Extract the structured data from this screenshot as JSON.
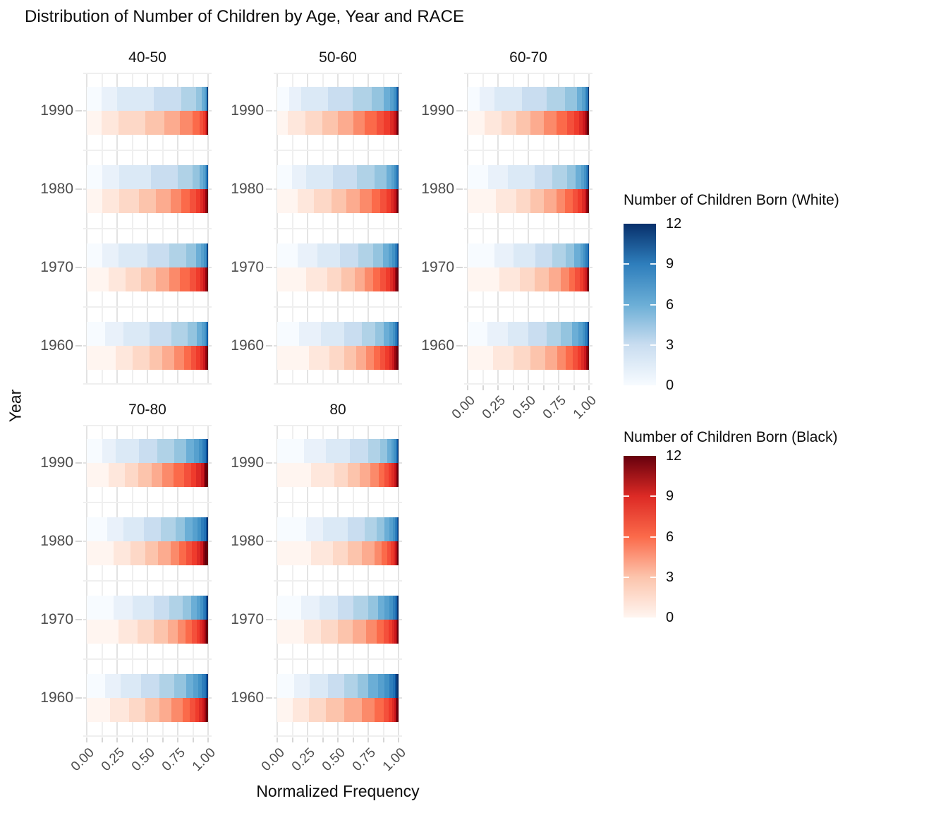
{
  "chart_data": {
    "type": "bar",
    "variant": "horizontal-stacked-normalized-gradient",
    "title": "Distribution of Number of Children by Age, Year and RACE",
    "xlabel": "Normalized Frequency",
    "ylabel": "Year",
    "x_ticks": [
      "0.00",
      "0.25",
      "0.50",
      "0.75",
      "1.00"
    ],
    "x_range": [
      0,
      1
    ],
    "years": [
      "1990",
      "1980",
      "1970",
      "1960"
    ],
    "children_scale": {
      "min": 0,
      "max": 12,
      "legend_breaks": [
        12,
        9,
        6,
        3,
        0
      ]
    },
    "grid": "on",
    "legend_position": "right",
    "palette_white": [
      "#F7FBFF",
      "#E9F1FA",
      "#DBE9F6",
      "#C9DDF0",
      "#B0D2E7",
      "#94C4DF",
      "#6BAED6",
      "#56A0CE",
      "#4292C6",
      "#2E7EBC",
      "#2171B5",
      "#0A539E",
      "#08306B"
    ],
    "palette_black": [
      "#FFF5F0",
      "#FEE7DC",
      "#FDD8C7",
      "#FCC4AC",
      "#FCAB8F",
      "#FB8A6A",
      "#FB6A4A",
      "#F4503B",
      "#EF3B2C",
      "#DD2A25",
      "#CB181D",
      "#99060F",
      "#67000D"
    ],
    "legends": [
      {
        "title": "Number of Children Born (White)",
        "ticks": [
          "12",
          "9",
          "6",
          "3",
          "0"
        ],
        "gradient": [
          "#F7FBFF",
          "#C9DDF0",
          "#6BAED6",
          "#2E7EBC",
          "#08306B"
        ]
      },
      {
        "title": "Number of Children Born (Black)",
        "ticks": [
          "12",
          "9",
          "6",
          "3",
          "0"
        ],
        "gradient": [
          "#FFF5F0",
          "#FCC4AC",
          "#FB6A4A",
          "#DD2A25",
          "#67000D"
        ]
      }
    ],
    "facets": [
      {
        "label": "40-50",
        "show_x_axis": false,
        "rows": [
          {
            "year": "1990",
            "white": [
              12,
              13,
              30,
              23,
              12,
              5,
              2,
              1,
              0.6,
              0.4,
              0.4,
              0.3,
              0.3
            ],
            "black": [
              12,
              14,
              22,
              16,
              13,
              10,
              6,
              3,
              1.5,
              1,
              0.6,
              0.5,
              0.4
            ]
          },
          {
            "year": "1980",
            "white": [
              13,
              14,
              26,
              22,
              12,
              6,
              3,
              1.5,
              1,
              0.6,
              0.4,
              0.3,
              0.2
            ],
            "black": [
              13,
              14,
              16,
              14,
              12,
              9,
              7,
              5,
              3.5,
              2.5,
              1.5,
              1.5,
              1
            ]
          },
          {
            "year": "1970",
            "white": [
              13,
              13,
              24,
              18,
              14,
              8,
              4,
              2.5,
              1.5,
              0.8,
              0.5,
              0.4,
              0.3
            ],
            "black": [
              18,
              14,
              13,
              12,
              11,
              9,
              8,
              5,
              3.5,
              2.5,
              1.5,
              1.5,
              1
            ]
          },
          {
            "year": "1960",
            "white": [
              15,
              15,
              22,
              18,
              13,
              8,
              4,
              2,
              1.2,
              0.8,
              0.5,
              0.3,
              0.2
            ],
            "black": [
              24,
              14,
              14,
              10,
              10,
              8,
              6,
              4,
              3.5,
              2.5,
              1.5,
              1.5,
              1
            ]
          }
        ]
      },
      {
        "label": "50-60",
        "show_x_axis": false,
        "rows": [
          {
            "year": "1990",
            "white": [
              10,
              10,
              22,
              20,
              16,
              10,
              5,
              3,
              1.5,
              1,
              0.6,
              0.5,
              0.4
            ],
            "black": [
              9,
              14,
              14,
              13,
              13,
              9,
              10,
              6,
              5,
              3,
              1.5,
              1.5,
              1
            ]
          },
          {
            "year": "1980",
            "white": [
              12,
              12,
              22,
              20,
              14,
              10,
              4,
              2.5,
              1.5,
              0.9,
              0.5,
              0.4,
              0.2
            ],
            "black": [
              17,
              13,
              15,
              12,
              11,
              10,
              7,
              5,
              3.5,
              2.5,
              1.5,
              1.5,
              1
            ]
          },
          {
            "year": "1970",
            "white": [
              17,
              16,
              19,
              15,
              12,
              8,
              5,
              3,
              2,
              1.2,
              0.8,
              0.6,
              0.4
            ],
            "black": [
              24,
              17,
              12,
              11,
              8,
              7,
              6,
              4.5,
              3.5,
              2.5,
              1.8,
              1.2,
              1.5
            ]
          },
          {
            "year": "1960",
            "white": [
              18,
              18,
              19,
              15,
              11,
              7,
              4.5,
              2.8,
              1.7,
              1,
              0.8,
              0.7,
              0.5
            ],
            "black": [
              26,
              17,
              12,
              10,
              8,
              6.5,
              5.5,
              4,
              3.2,
              2.8,
              1.8,
              1.6,
              1.6
            ]
          }
        ]
      },
      {
        "label": "60-70",
        "show_x_axis": true,
        "rows": [
          {
            "year": "1990",
            "white": [
              10,
              12,
              23,
              20,
              15,
              10,
              4,
              2.5,
              1.5,
              0.8,
              0.5,
              0.4,
              0.3
            ],
            "black": [
              14,
              14,
              12,
              12,
              11,
              10,
              9,
              6,
              4,
              3,
              1.9,
              1.6,
              1.5
            ]
          },
          {
            "year": "1980",
            "white": [
              17,
              16,
              22,
              15,
              12,
              7,
              4.5,
              2.5,
              1.5,
              1,
              0.7,
              0.5,
              0.3
            ],
            "black": [
              23,
              17,
              12,
              11,
              10,
              7.5,
              6,
              4.5,
              3.2,
              2.2,
              1.5,
              1.1,
              1
            ]
          },
          {
            "year": "1970",
            "white": [
              22,
              16,
              18,
              14,
              11,
              7,
              4.8,
              2.8,
              1.8,
              1.2,
              0.8,
              0.4,
              0.2
            ],
            "black": [
              26,
              17,
              12,
              12,
              10,
              6.5,
              5,
              4,
              2.8,
              1.8,
              1.1,
              0.8,
              1
            ]
          },
          {
            "year": "1960",
            "white": [
              16,
              17,
              17,
              15,
              12,
              9,
              5.5,
              3.2,
              2,
              1.4,
              0.8,
              0.6,
              0.5
            ],
            "black": [
              21,
              17,
              14,
              12,
              10,
              7,
              5.5,
              4,
              3.2,
              2.4,
              1.5,
              1,
              1.4
            ]
          }
        ]
      },
      {
        "label": "70-80",
        "show_x_axis": true,
        "rows": [
          {
            "year": "1990",
            "white": [
              13,
              11,
              19,
              15,
              14,
              10,
              6.5,
              4,
              2.8,
              1.8,
              1.2,
              0.9,
              0.8
            ],
            "black": [
              18,
              13,
              11,
              11,
              9,
              9,
              9,
              5.5,
              4.5,
              3.5,
              2.5,
              1.5,
              2
            ]
          },
          {
            "year": "1980",
            "white": [
              17,
              13,
              17,
              14,
              12,
              8,
              6,
              4.5,
              3,
              2.2,
              1.3,
              1,
              1
            ],
            "black": [
              22,
              14,
              12,
              11,
              10,
              7,
              6,
              4.8,
              3.8,
              3,
              2.2,
              1.6,
              2.6
            ]
          },
          {
            "year": "1970",
            "white": [
              22,
              16,
              17,
              13,
              11,
              7,
              4.5,
              3,
              2.2,
              1.5,
              1,
              0.8,
              1
            ],
            "black": [
              26,
              16,
              13,
              12,
              8,
              6.5,
              5,
              4,
              2.8,
              2.2,
              1.5,
              1.2,
              1.8
            ]
          },
          {
            "year": "1960",
            "white": [
              15,
              13,
              17,
              15,
              12,
              10,
              6,
              4,
              3,
              2,
              1.4,
              0.8,
              0.8
            ],
            "black": [
              19,
              16,
              13,
              12,
              10,
              9,
              6,
              4.5,
              3.2,
              2.5,
              1.8,
              1.2,
              1.8
            ]
          }
        ]
      },
      {
        "label": "80",
        "show_x_axis": true,
        "rows": [
          {
            "year": "1990",
            "white": [
              22,
              18,
              20,
              15,
              10,
              5.5,
              3.5,
              2.2,
              1.3,
              0.9,
              0.6,
              0.5,
              0.5
            ],
            "black": [
              28,
              19,
              11,
              10,
              9,
              6.5,
              5,
              3.5,
              2.5,
              2,
              1.3,
              0.9,
              1.3
            ]
          },
          {
            "year": "1980",
            "white": [
              24,
              14,
              20,
              14,
              10,
              6.5,
              4,
              2.8,
              1.8,
              1.1,
              0.7,
              0.5,
              0.6
            ],
            "black": [
              28,
              18,
              12,
              12,
              10,
              6,
              4.5,
              3,
              2.2,
              1.6,
              1,
              0.8,
              0.9
            ]
          },
          {
            "year": "1970",
            "white": [
              20,
              15,
              15,
              13,
              12,
              8,
              5.5,
              4,
              2.8,
              1.8,
              1.1,
              0.8,
              1
            ],
            "black": [
              22,
              14,
              14,
              12,
              11,
              9,
              6,
              4,
              2.8,
              2,
              1.4,
              0.8,
              1
            ]
          },
          {
            "year": "1960",
            "white": [
              14,
              13,
              15,
              13,
              11,
              9,
              8,
              5.5,
              4,
              2.8,
              2,
              1.2,
              1.5
            ],
            "black": [
              13,
              13,
              14,
              15,
              15,
              10,
              8,
              4,
              2.5,
              1.8,
              1.2,
              0.8,
              1.7
            ]
          }
        ]
      }
    ]
  }
}
